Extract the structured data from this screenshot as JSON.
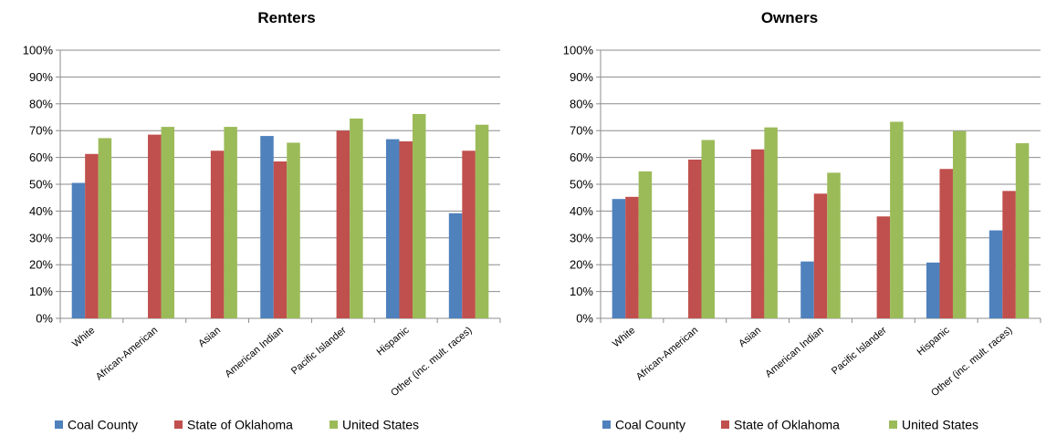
{
  "chart_data": [
    {
      "type": "bar",
      "title": "Renters",
      "categories": [
        "White",
        "African-American",
        "Asian",
        "American Indian",
        "Pacific Islander",
        "Hispanic",
        "Other (inc. mult. races)"
      ],
      "series": [
        {
          "name": "Coal County",
          "color": "#4f81bd",
          "values": [
            0.505,
            null,
            null,
            0.68,
            null,
            0.668,
            0.392
          ]
        },
        {
          "name": "State of Oklahoma",
          "color": "#c0504d",
          "values": [
            0.613,
            0.685,
            0.625,
            0.585,
            0.7,
            0.66,
            0.625
          ]
        },
        {
          "name": "United States",
          "color": "#9bbb59",
          "values": [
            0.672,
            0.714,
            0.714,
            0.655,
            0.745,
            0.762,
            0.722
          ]
        }
      ],
      "yticks": [
        "0%",
        "10%",
        "20%",
        "30%",
        "40%",
        "50%",
        "60%",
        "70%",
        "80%",
        "90%",
        "100%"
      ],
      "ylim": [
        0,
        1
      ],
      "grid": true,
      "legend": "bottom"
    },
    {
      "type": "bar",
      "title": "Owners",
      "categories": [
        "White",
        "African-American",
        "Asian",
        "American Indian",
        "Pacific Islander",
        "Hispanic",
        "Other (inc. mult. races)"
      ],
      "series": [
        {
          "name": "Coal County",
          "color": "#4f81bd",
          "values": [
            0.445,
            null,
            null,
            0.212,
            null,
            0.208,
            0.328
          ]
        },
        {
          "name": "State of Oklahoma",
          "color": "#c0504d",
          "values": [
            0.453,
            0.592,
            0.63,
            0.465,
            0.38,
            0.557,
            0.475
          ]
        },
        {
          "name": "United States",
          "color": "#9bbb59",
          "values": [
            0.548,
            0.665,
            0.712,
            0.543,
            0.733,
            0.698,
            0.653
          ]
        }
      ],
      "yticks": [
        "0%",
        "10%",
        "20%",
        "30%",
        "40%",
        "50%",
        "60%",
        "70%",
        "80%",
        "90%",
        "100%"
      ],
      "ylim": [
        0,
        1
      ],
      "grid": true,
      "legend": "bottom"
    }
  ]
}
